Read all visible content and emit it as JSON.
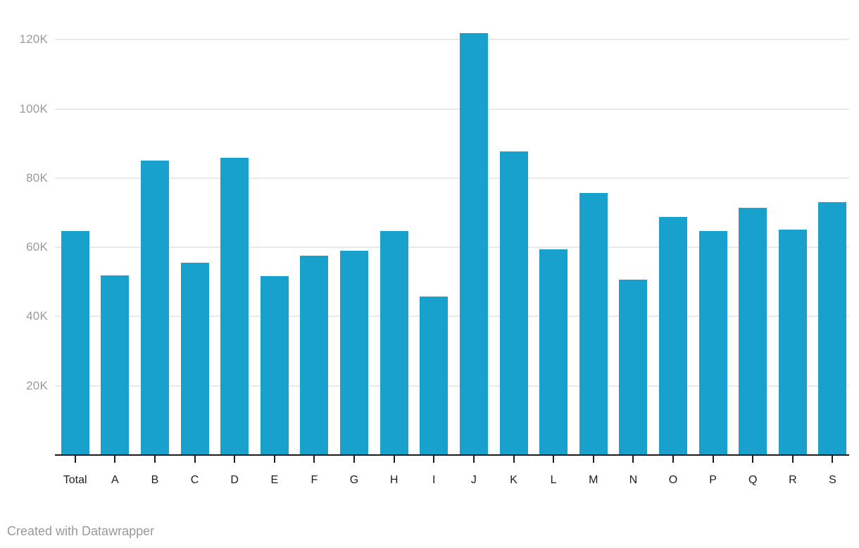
{
  "chart_data": {
    "type": "bar",
    "categories": [
      "Total",
      "A",
      "B",
      "C",
      "D",
      "E",
      "F",
      "G",
      "H",
      "I",
      "J",
      "K",
      "L",
      "M",
      "N",
      "O",
      "P",
      "Q",
      "R",
      "S"
    ],
    "values": [
      64600,
      51900,
      85000,
      55500,
      85800,
      51700,
      57600,
      59100,
      64600,
      45800,
      121800,
      87700,
      59500,
      75700,
      50700,
      68700,
      64600,
      71500,
      65200,
      73000
    ],
    "title": "",
    "xlabel": "",
    "ylabel": "",
    "ylim": [
      0,
      124000
    ],
    "yticks": [
      20000,
      40000,
      60000,
      80000,
      100000,
      120000
    ],
    "ytick_labels": [
      "20K",
      "40K",
      "60K",
      "80K",
      "100K",
      "120K"
    ],
    "grid": true,
    "legend": "none",
    "bar_color": "#18a1cd"
  },
  "colors": {
    "bar": "#18a1cd",
    "gridline": "#e9e9e9",
    "axis": "#1a1a1a",
    "ytick_text": "#9a9a9a",
    "xtick_text": "#1d1d1d",
    "credit_text": "#9a9a9a",
    "background": "#ffffff"
  },
  "footer": {
    "credit": "Created with Datawrapper"
  }
}
